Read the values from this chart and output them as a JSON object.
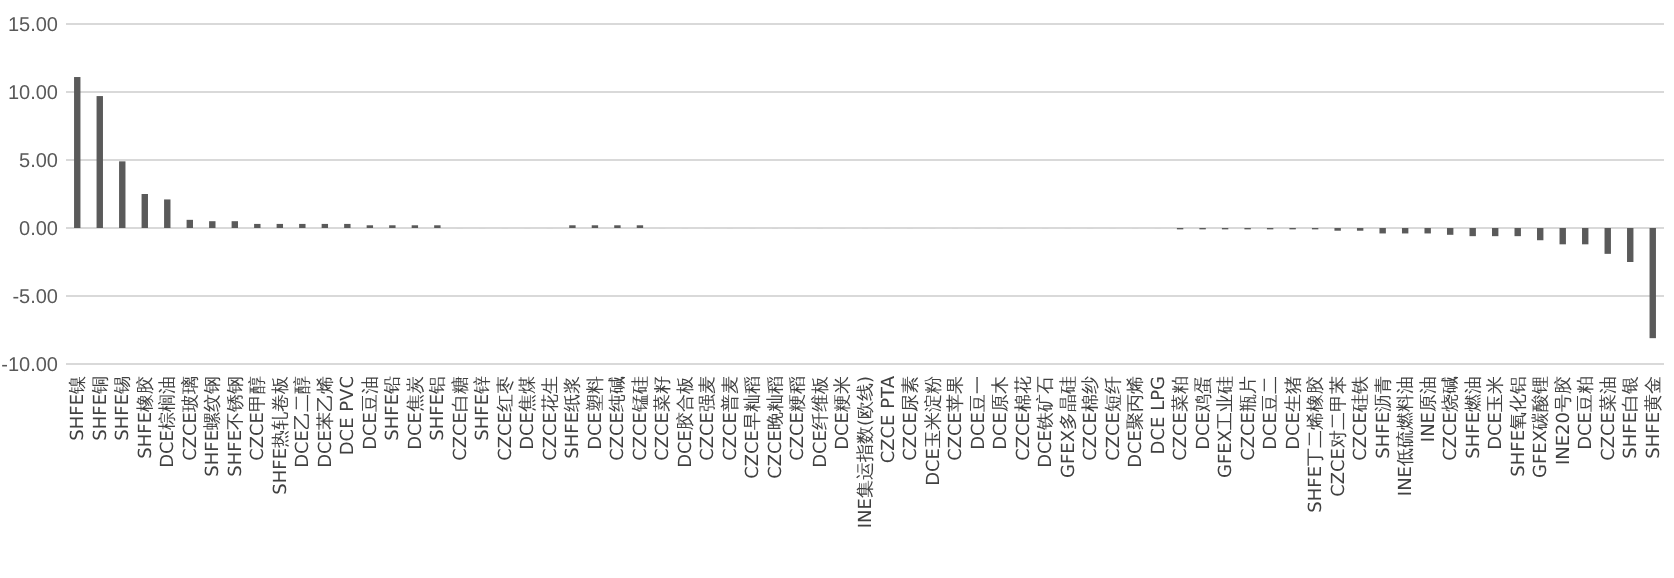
{
  "chart_data": {
    "type": "bar",
    "categories": [
      "SHFE镍",
      "SHFE铜",
      "SHFE锡",
      "SHFE橡胶",
      "DCE棕榈油",
      "CZCE玻璃",
      "SHFE螺纹钢",
      "SHFE不锈钢",
      "CZCE甲醇",
      "SHFE热轧卷板",
      "DCE乙二醇",
      "DCE苯乙烯",
      "DCE PVC",
      "DCE豆油",
      "SHFE铅",
      "DCE焦炭",
      "SHFE铝",
      "CZCE白糖",
      "SHFE锌",
      "CZCE红枣",
      "DCE焦煤",
      "CZCE花生",
      "SHFE纸浆",
      "DCE塑料",
      "CZCE纯碱",
      "CZCE锰硅",
      "CZCE菜籽",
      "DCE胶合板",
      "CZCE强麦",
      "CZCE普麦",
      "CZCE早籼稻",
      "CZCE晚籼稻",
      "CZCE粳稻",
      "DCE纤维板",
      "DCE粳米",
      "INE集运指数(欧线)",
      "CZCE PTA",
      "CZCE尿素",
      "DCE玉米淀粉",
      "CZCE苹果",
      "DCE豆一",
      "DCE原木",
      "CZCE棉花",
      "DCE铁矿石",
      "GFEX多晶硅",
      "CZCE棉纱",
      "CZCE短纤",
      "DCE聚丙烯",
      "DCE LPG",
      "CZCE菜粕",
      "DCE鸡蛋",
      "GFEX工业硅",
      "CZCE瓶片",
      "DCE豆二",
      "DCE生猪",
      "SHFE丁二烯橡胶",
      "CZCE对二甲苯",
      "CZCE硅铁",
      "SHFE沥青",
      "INE低硫燃料油",
      "INE原油",
      "CZCE烧碱",
      "SHFE燃油",
      "DCE玉米",
      "SHFE氧化铝",
      "GFEX碳酸锂",
      "INE20号胶",
      "DCE豆粕",
      "CZCE菜油",
      "SHFE白银",
      "SHFE黄金"
    ],
    "values": [
      11.1,
      9.7,
      4.9,
      2.5,
      2.1,
      0.6,
      0.5,
      0.5,
      0.3,
      0.3,
      0.3,
      0.3,
      0.3,
      0.2,
      0.2,
      0.2,
      0.2,
      0,
      0,
      0,
      0,
      0,
      0.2,
      0.2,
      0.2,
      0.2,
      0,
      0,
      0,
      0,
      0,
      0,
      0,
      0,
      0,
      0,
      0,
      0,
      0,
      0,
      0,
      0,
      0,
      0,
      0,
      0,
      0,
      0,
      0,
      -0.1,
      -0.1,
      -0.1,
      -0.1,
      -0.1,
      -0.1,
      -0.1,
      -0.2,
      -0.2,
      -0.4,
      -0.4,
      -0.4,
      -0.5,
      -0.6,
      -0.6,
      -0.6,
      -0.9,
      -1.2,
      -1.2,
      -1.9,
      -2.5,
      -8.1
    ],
    "color": "#5a5a5a",
    "ylim": [
      -10,
      15
    ],
    "yticks": [
      {
        "value": -10,
        "label": "-10.00"
      },
      {
        "value": -5,
        "label": "-5.00"
      },
      {
        "value": 0,
        "label": "0.00"
      },
      {
        "value": 5,
        "label": "5.00"
      },
      {
        "value": 10,
        "label": "10.00"
      },
      {
        "value": 15,
        "label": "15.00"
      }
    ],
    "grid": "y"
  }
}
